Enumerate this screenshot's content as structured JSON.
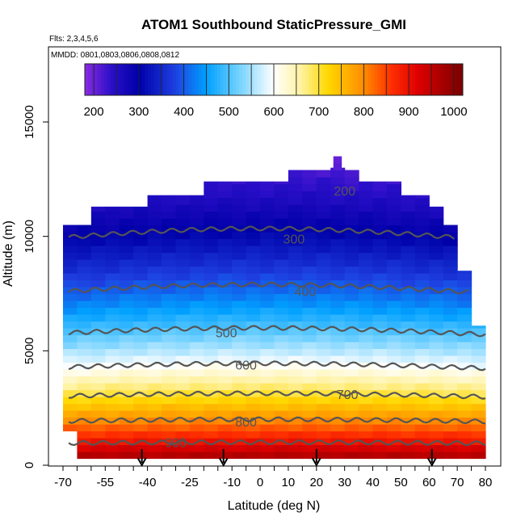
{
  "chart_data": {
    "type": "heatmap",
    "title": "ATOM1 Southbound StaticPressure_GMI",
    "subtitle_flights": "Flts: 2,3,4,5,6",
    "subtitle_dates": "MMDD: 0801,0803,0806,0808,0812",
    "xlabel": "Latitude (deg N)",
    "ylabel": "Altitude (m)",
    "xlim": [
      -70,
      80
    ],
    "ylim": [
      0,
      17500
    ],
    "x_ticks": [
      "-70",
      "-55",
      "-40",
      "-25",
      "-10",
      "0",
      "10",
      "20",
      "30",
      "40",
      "50",
      "60",
      "70",
      "80"
    ],
    "x_tick_values": [
      -70,
      -65,
      -60,
      -55,
      -50,
      -45,
      -40,
      -35,
      -30,
      -25,
      -20,
      -15,
      -10,
      -5,
      0,
      5,
      10,
      15,
      20,
      25,
      30,
      35,
      40,
      45,
      50,
      55,
      60,
      65,
      70,
      75,
      80
    ],
    "y_ticks": [
      "0",
      "5000",
      "10000",
      "15000"
    ],
    "y_tick_values": [
      0,
      5000,
      10000,
      15000
    ],
    "colorbar": {
      "range": [
        180,
        1020
      ],
      "ticks": [
        "200",
        "300",
        "400",
        "500",
        "600",
        "700",
        "800",
        "900",
        "1000"
      ],
      "tick_values": [
        200,
        300,
        400,
        500,
        600,
        700,
        800,
        900,
        1000
      ],
      "stops": [
        {
          "v": 180,
          "c": "#8a2be2"
        },
        {
          "v": 240,
          "c": "#2a0fc8"
        },
        {
          "v": 300,
          "c": "#0000a8"
        },
        {
          "v": 380,
          "c": "#1e3fe0"
        },
        {
          "v": 450,
          "c": "#00a0ff"
        },
        {
          "v": 520,
          "c": "#6fd0ff"
        },
        {
          "v": 600,
          "c": "#ffffff"
        },
        {
          "v": 660,
          "c": "#fff2a0"
        },
        {
          "v": 720,
          "c": "#ffd800"
        },
        {
          "v": 800,
          "c": "#ff8c00"
        },
        {
          "v": 860,
          "c": "#ff3000"
        },
        {
          "v": 920,
          "c": "#dd0000"
        },
        {
          "v": 1020,
          "c": "#7a0000"
        }
      ]
    },
    "lat_bins": [
      -67.5,
      -62.5,
      -57.5,
      -52.5,
      -47.5,
      -42.5,
      -37.5,
      -32.5,
      -27.5,
      -22.5,
      -17.5,
      -12.5,
      -7.5,
      -2.5,
      2.5,
      7.5,
      12.5,
      17.5,
      22.5,
      27.5,
      32.5,
      37.5,
      42.5,
      47.5,
      52.5,
      57.5,
      62.5,
      67.5,
      72.5,
      77.5
    ],
    "column_top_altitude": [
      10500,
      10500,
      11300,
      11300,
      11300,
      11300,
      11800,
      11800,
      11800,
      11800,
      12400,
      12400,
      12400,
      12400,
      12400,
      12400,
      12900,
      12900,
      12900,
      13000,
      12900,
      12400,
      12400,
      12400,
      11800,
      11800,
      11300,
      10500,
      8500,
      6100
    ],
    "column_bottom_altitude": [
      1500,
      300,
      300,
      300,
      300,
      300,
      300,
      300,
      300,
      300,
      300,
      300,
      300,
      300,
      300,
      300,
      300,
      300,
      300,
      300,
      300,
      300,
      300,
      300,
      300,
      300,
      300,
      300,
      300,
      300
    ],
    "peak_column": {
      "lat_min": 26,
      "lat_max": 29,
      "top_altitude": 13500
    },
    "contour_levels": [
      200,
      300,
      400,
      500,
      600,
      700,
      800,
      900
    ],
    "contour_label_positions": [
      {
        "level": 200,
        "lat": 30,
        "alt": 12000
      },
      {
        "level": 300,
        "lat": 12,
        "alt": 9900
      },
      {
        "level": 400,
        "lat": 16,
        "alt": 7600
      },
      {
        "level": 500,
        "lat": -12,
        "alt": 5800
      },
      {
        "level": 600,
        "lat": -5,
        "alt": 4400
      },
      {
        "level": 700,
        "lat": 31,
        "alt": 3100
      },
      {
        "level": 800,
        "lat": -5,
        "alt": 1900
      },
      {
        "level": 900,
        "lat": -30,
        "alt": 1000
      }
    ],
    "arrow_latitudes": [
      -42,
      -13,
      20,
      61
    ],
    "grid": false,
    "legend": "top"
  }
}
